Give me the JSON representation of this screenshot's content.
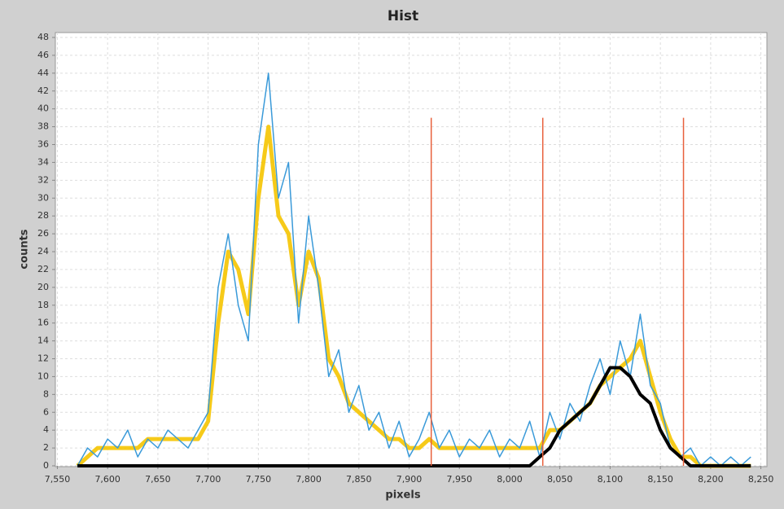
{
  "chart_data": {
    "type": "line",
    "title": "Hist",
    "x_label": "pixels",
    "y_label": "counts",
    "x": [
      7570,
      7580,
      7590,
      7600,
      7610,
      7620,
      7630,
      7640,
      7650,
      7660,
      7670,
      7680,
      7690,
      7700,
      7710,
      7720,
      7730,
      7740,
      7750,
      7760,
      7770,
      7780,
      7790,
      7800,
      7810,
      7820,
      7830,
      7840,
      7850,
      7860,
      7870,
      7880,
      7890,
      7900,
      7910,
      7920,
      7930,
      7940,
      7950,
      7960,
      7970,
      7980,
      7990,
      8000,
      8010,
      8020,
      8030,
      8040,
      8050,
      8060,
      8070,
      8080,
      8090,
      8100,
      8110,
      8120,
      8130,
      8140,
      8150,
      8160,
      8170,
      8180,
      8190,
      8200,
      8210,
      8220,
      8230,
      8240
    ],
    "series": [
      {
        "color": "#3a9ad9",
        "values": [
          0,
          2,
          1,
          3,
          2,
          4,
          1,
          3,
          2,
          4,
          3,
          2,
          4,
          6,
          20,
          26,
          18,
          14,
          36,
          44,
          30,
          34,
          16,
          28,
          20,
          10,
          13,
          6,
          9,
          4,
          6,
          2,
          5,
          1,
          3,
          6,
          2,
          4,
          1,
          3,
          2,
          4,
          1,
          3,
          2,
          5,
          1,
          6,
          3,
          7,
          5,
          9,
          12,
          8,
          14,
          10,
          17,
          9,
          7,
          2,
          1,
          2,
          0,
          1,
          0,
          1,
          0,
          1
        ]
      },
      {
        "color": "#f5c400",
        "values": [
          0,
          1,
          2,
          2,
          2,
          2,
          2,
          3,
          3,
          3,
          3,
          3,
          3,
          5,
          16,
          24,
          22,
          17,
          30,
          38,
          28,
          26,
          18,
          24,
          21,
          12,
          10,
          7,
          6,
          5,
          4,
          3,
          3,
          2,
          2,
          3,
          2,
          2,
          2,
          2,
          2,
          2,
          2,
          2,
          2,
          2,
          2,
          4,
          4,
          5,
          6,
          7,
          9,
          10,
          11,
          12,
          14,
          10,
          6,
          3,
          1,
          1,
          0,
          0,
          0,
          0,
          0,
          0
        ]
      },
      {
        "color": "#000000",
        "values": [
          0,
          0,
          0,
          0,
          0,
          0,
          0,
          0,
          0,
          0,
          0,
          0,
          0,
          0,
          0,
          0,
          0,
          0,
          0,
          0,
          0,
          0,
          0,
          0,
          0,
          0,
          0,
          0,
          0,
          0,
          0,
          0,
          0,
          0,
          0,
          0,
          0,
          0,
          0,
          0,
          0,
          0,
          0,
          0,
          0,
          0,
          1,
          2,
          4,
          5,
          6,
          7,
          9,
          11,
          11,
          10,
          8,
          7,
          4,
          2,
          1,
          0,
          0,
          0,
          0,
          0,
          0,
          0
        ]
      }
    ],
    "vlines": {
      "color": "#e8603c",
      "x": [
        7922,
        8033,
        8173
      ],
      "values": [
        39,
        39,
        39
      ]
    },
    "xlim": [
      7548,
      8256
    ],
    "ylim": [
      0,
      48
    ],
    "xticks": [
      {
        "value": 7550,
        "label": "7,550"
      },
      {
        "value": 7600,
        "label": "7,600"
      },
      {
        "value": 7650,
        "label": "7,650"
      },
      {
        "value": 7700,
        "label": "7,700"
      },
      {
        "value": 7750,
        "label": "7,750"
      },
      {
        "value": 7800,
        "label": "7,800"
      },
      {
        "value": 7850,
        "label": "7,850"
      },
      {
        "value": 7900,
        "label": "7,900"
      },
      {
        "value": 7950,
        "label": "7,950"
      },
      {
        "value": 8000,
        "label": "8,000"
      },
      {
        "value": 8050,
        "label": "8,050"
      },
      {
        "value": 8100,
        "label": "8,100"
      },
      {
        "value": 8150,
        "label": "8,150"
      },
      {
        "value": 8200,
        "label": "8,200"
      },
      {
        "value": 8250,
        "label": "8,250"
      }
    ],
    "yticks": [
      0,
      2,
      4,
      6,
      8,
      10,
      12,
      14,
      16,
      18,
      20,
      22,
      24,
      26,
      28,
      30,
      32,
      34,
      36,
      38,
      40,
      42,
      44,
      46,
      48
    ],
    "grid": true
  }
}
